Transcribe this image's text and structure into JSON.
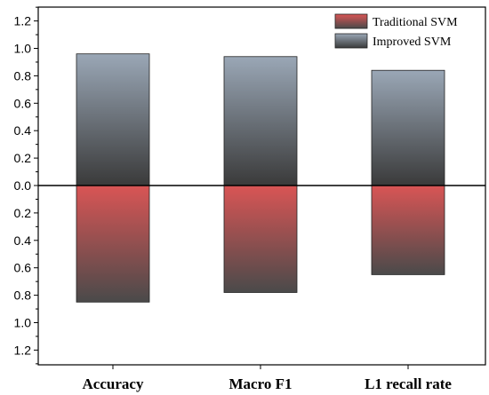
{
  "chart_data": {
    "type": "bar",
    "orientation": "diverging-vertical",
    "categories": [
      "Accuracy",
      "Macro F1",
      "L1 recall rate"
    ],
    "series": [
      {
        "name": "Traditional SVM",
        "direction": "down",
        "values": [
          0.85,
          0.78,
          0.65
        ],
        "color": "#d95555",
        "color_dark": "#4a4a4a"
      },
      {
        "name": "Improved SVM",
        "direction": "up",
        "values": [
          0.96,
          0.94,
          0.84
        ],
        "color": "#9aa7b6",
        "color_dark": "#3a3a3a"
      }
    ],
    "yticks": [
      "0.0",
      "0.2",
      "0.4",
      "0.6",
      "0.8",
      "1.0",
      "1.2"
    ],
    "ylim": [
      -1.3,
      1.3
    ],
    "legend_position": "top-right",
    "grid": false,
    "title": "",
    "xlabel": "",
    "ylabel": ""
  }
}
